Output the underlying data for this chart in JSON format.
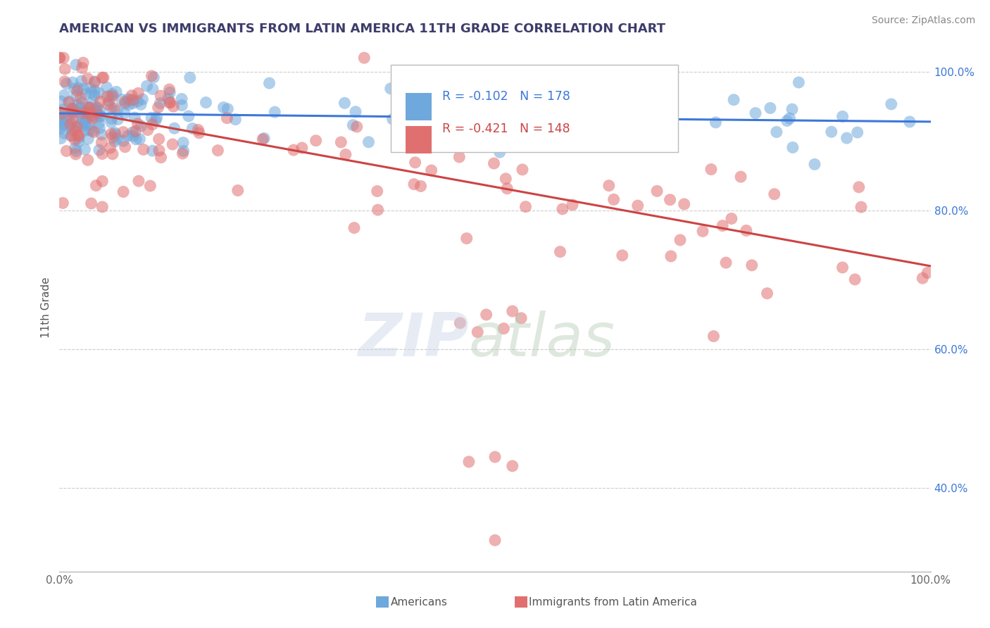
{
  "title": "AMERICAN VS IMMIGRANTS FROM LATIN AMERICA 11TH GRADE CORRELATION CHART",
  "source": "Source: ZipAtlas.com",
  "ylabel": "11th Grade",
  "x_min": 0.0,
  "x_max": 1.0,
  "y_min": 0.28,
  "y_max": 1.04,
  "blue_R": -0.102,
  "blue_N": 178,
  "pink_R": -0.421,
  "pink_N": 148,
  "blue_color": "#6fa8dc",
  "pink_color": "#e07070",
  "blue_line_color": "#3c78d8",
  "pink_line_color": "#cc4444",
  "legend_label_blue": "Americans",
  "legend_label_pink": "Immigrants from Latin America",
  "title_color": "#3d3d6b",
  "source_color": "#888888",
  "right_ytick_labels": [
    "40.0%",
    "60.0%",
    "80.0%",
    "100.0%"
  ],
  "right_ytick_values": [
    0.4,
    0.6,
    0.8,
    1.0
  ],
  "blue_trend_x0": 0.0,
  "blue_trend_y0": 0.94,
  "blue_trend_x1": 1.0,
  "blue_trend_y1": 0.928,
  "pink_trend_x0": 0.0,
  "pink_trend_y0": 0.948,
  "pink_trend_x1": 1.0,
  "pink_trend_y1": 0.72
}
